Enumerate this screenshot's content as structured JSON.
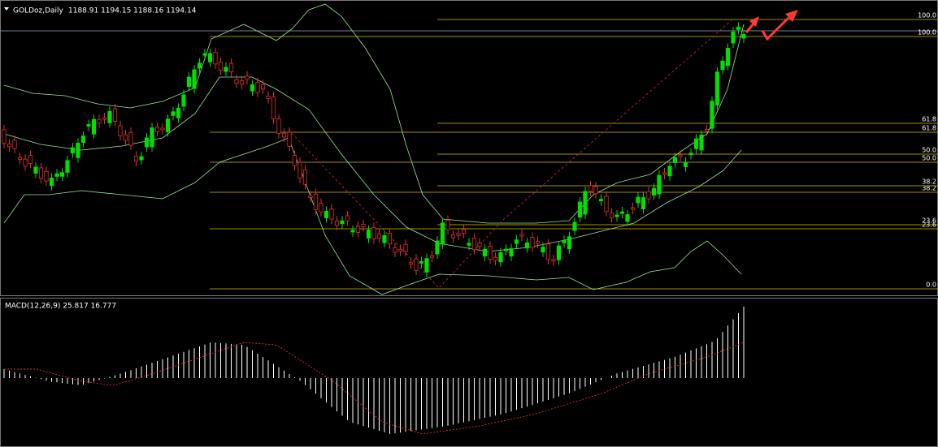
{
  "header": {
    "symbol": "GOLDoz,Daily",
    "quote": "1188.91 1194.15 1188.16 1194.14"
  },
  "indicator": {
    "label": "MACD(12,26,9) 25.817 16.777"
  },
  "fib_levels": [
    "100.0",
    "61.8",
    "50.0",
    "38.2",
    "23.6",
    "0.0"
  ]
}
